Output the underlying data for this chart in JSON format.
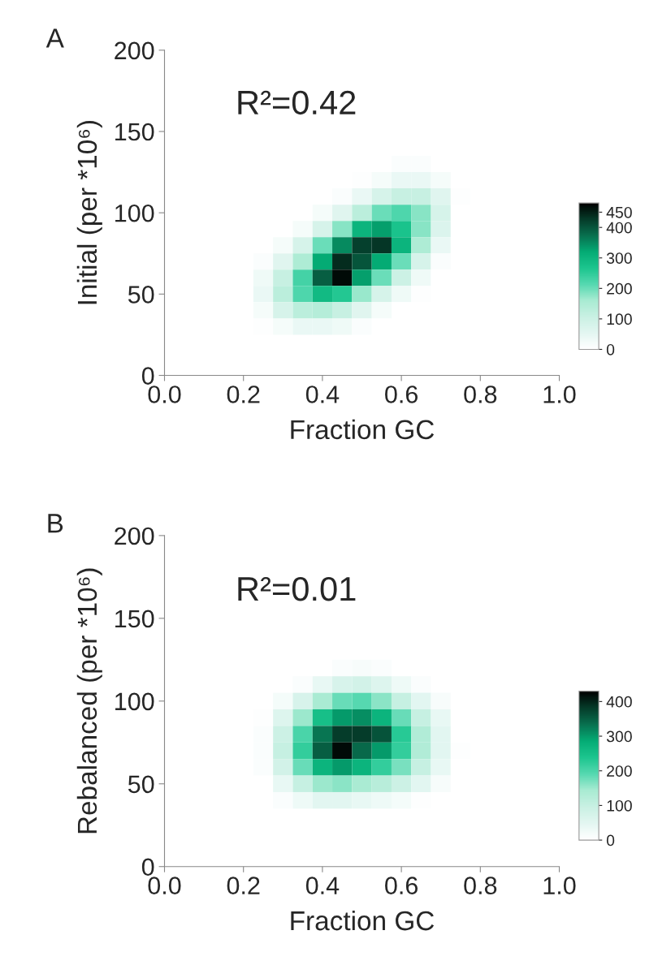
{
  "chart_data": [
    {
      "type": "heatmap",
      "ylabel": "Initial (per *10⁶)",
      "xlabel": "Fraction GC",
      "annotations": [
        "A",
        "R²=0.42"
      ],
      "x": [
        0.25,
        0.3,
        0.35,
        0.4,
        0.45,
        0.5,
        0.55,
        0.6,
        0.65,
        0.7,
        0.75
      ],
      "y": [
        130,
        120,
        110,
        100,
        90,
        80,
        70,
        60,
        50,
        40,
        30
      ],
      "cells": [
        [
          0,
          0,
          0,
          0,
          0,
          0,
          0,
          10,
          10,
          0,
          0
        ],
        [
          0,
          0,
          0,
          0,
          0,
          5,
          20,
          40,
          40,
          20,
          0
        ],
        [
          0,
          0,
          0,
          0,
          10,
          40,
          80,
          110,
          110,
          60,
          5
        ],
        [
          0,
          0,
          0,
          20,
          60,
          130,
          200,
          220,
          180,
          80,
          0
        ],
        [
          0,
          0,
          20,
          80,
          180,
          300,
          330,
          270,
          180,
          70,
          0
        ],
        [
          0,
          20,
          80,
          200,
          350,
          420,
          430,
          300,
          150,
          40,
          0
        ],
        [
          10,
          60,
          150,
          320,
          440,
          400,
          320,
          200,
          80,
          10,
          0
        ],
        [
          30,
          110,
          230,
          390,
          470,
          330,
          200,
          100,
          30,
          0,
          0
        ],
        [
          40,
          130,
          220,
          290,
          260,
          170,
          80,
          30,
          5,
          0,
          0
        ],
        [
          20,
          80,
          130,
          140,
          110,
          60,
          20,
          0,
          0,
          0,
          0
        ],
        [
          5,
          20,
          40,
          40,
          30,
          10,
          0,
          0,
          0,
          0,
          0
        ]
      ],
      "clim": [
        0,
        480
      ],
      "cticks": [
        0,
        100,
        200,
        300,
        400,
        450
      ],
      "xlim": [
        0,
        1
      ],
      "xticks": [
        {
          "value": 0,
          "label": "0.0"
        },
        {
          "value": 0.2,
          "label": "0.2"
        },
        {
          "value": 0.4,
          "label": "0.4"
        },
        {
          "value": 0.6,
          "label": "0.6"
        },
        {
          "value": 0.8,
          "label": "0.8"
        },
        {
          "value": 1,
          "label": "1.0"
        }
      ],
      "ylim": [
        0,
        200
      ],
      "yticks": [
        0,
        50,
        100,
        150,
        200
      ],
      "grid": false
    },
    {
      "type": "heatmap",
      "ylabel": "Rebalanced (per *10⁶)",
      "xlabel": "Fraction GC",
      "annotations": [
        "B",
        "R²=0.01"
      ],
      "x": [
        0.25,
        0.3,
        0.35,
        0.4,
        0.45,
        0.5,
        0.55,
        0.6,
        0.65,
        0.7,
        0.75
      ],
      "y": [
        120,
        110,
        100,
        90,
        80,
        70,
        60,
        50,
        40
      ],
      "cells": [
        [
          0,
          0,
          0,
          0,
          10,
          15,
          10,
          0,
          0,
          0,
          0
        ],
        [
          0,
          0,
          10,
          40,
          70,
          80,
          60,
          30,
          10,
          0,
          0
        ],
        [
          0,
          20,
          70,
          140,
          180,
          190,
          160,
          100,
          50,
          15,
          0
        ],
        [
          5,
          60,
          150,
          250,
          300,
          310,
          270,
          180,
          100,
          40,
          0
        ],
        [
          10,
          90,
          200,
          330,
          380,
          380,
          360,
          230,
          130,
          50,
          0
        ],
        [
          10,
          100,
          220,
          350,
          420,
          340,
          300,
          220,
          130,
          50,
          5
        ],
        [
          10,
          80,
          180,
          270,
          300,
          270,
          220,
          170,
          100,
          40,
          0
        ],
        [
          0,
          40,
          100,
          150,
          160,
          140,
          120,
          90,
          50,
          15,
          0
        ],
        [
          0,
          10,
          30,
          50,
          50,
          40,
          30,
          20,
          5,
          0,
          0
        ]
      ],
      "clim": [
        0,
        430
      ],
      "cticks": [
        0,
        100,
        200,
        300,
        400
      ],
      "xlim": [
        0,
        1
      ],
      "xticks": [
        {
          "value": 0,
          "label": "0.0"
        },
        {
          "value": 0.2,
          "label": "0.2"
        },
        {
          "value": 0.4,
          "label": "0.4"
        },
        {
          "value": 0.6,
          "label": "0.6"
        },
        {
          "value": 0.8,
          "label": "0.8"
        },
        {
          "value": 1,
          "label": "1.0"
        }
      ],
      "ylim": [
        0,
        200
      ],
      "yticks": [
        0,
        50,
        100,
        150,
        200
      ],
      "grid": false
    }
  ]
}
